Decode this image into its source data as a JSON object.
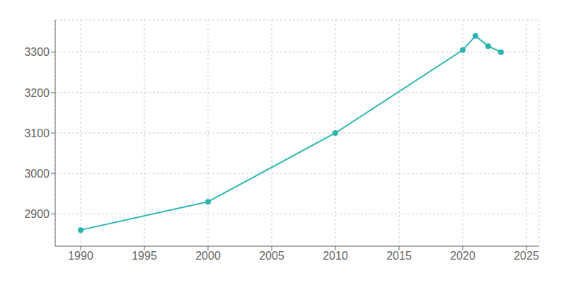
{
  "chart_data": {
    "type": "line",
    "x": [
      1990,
      2000,
      2010,
      2020,
      2021,
      2022,
      2023
    ],
    "values": [
      2860,
      2930,
      3100,
      3305,
      3340,
      3315,
      3300
    ],
    "color": "#2ab5b0",
    "marker": "circle",
    "xlim": [
      1988,
      2026
    ],
    "ylim": [
      2820,
      3380
    ],
    "xticks": [
      1990,
      1995,
      2000,
      2005,
      2010,
      2015,
      2020,
      2025
    ],
    "yticks": [
      2900,
      3000,
      3100,
      3200,
      3300
    ],
    "grid": true
  }
}
